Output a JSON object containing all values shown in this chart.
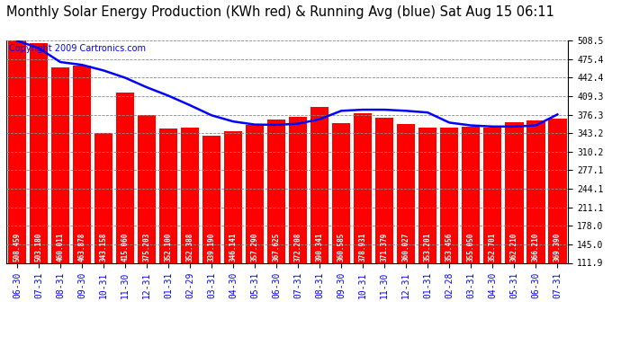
{
  "title": "Monthly Solar Energy Production (KWh red) & Running Avg (blue) Sat Aug 15 06:11",
  "copyright": "Copyright 2009 Cartronics.com",
  "categories": [
    "06-30",
    "07-31",
    "08-31",
    "09-30",
    "10-31",
    "11-30",
    "12-31",
    "01-31",
    "02-29",
    "03-31",
    "04-30",
    "05-31",
    "06-30",
    "07-31",
    "08-31",
    "09-30",
    "10-31",
    "11-30",
    "12-31",
    "01-31",
    "02-28",
    "03-31",
    "04-30",
    "05-31",
    "06-30",
    "07-31"
  ],
  "bar_values": [
    508.459,
    503.18,
    460.011,
    463.878,
    343.158,
    415.06,
    375.203,
    352.1,
    352.388,
    339.19,
    346.141,
    357.29,
    367.625,
    372.208,
    390.341,
    360.585,
    378.931,
    371.379,
    360.027,
    353.201,
    353.456,
    355.05,
    352.701,
    362.21,
    366.21,
    369.39
  ],
  "running_avg": [
    508.0,
    495.0,
    470.0,
    465.0,
    455.0,
    442.0,
    425.0,
    410.0,
    393.0,
    375.0,
    364.0,
    358.5,
    358.0,
    360.0,
    368.0,
    383.0,
    385.0,
    385.0,
    383.0,
    380.0,
    362.0,
    357.0,
    355.0,
    355.0,
    357.0,
    376.5
  ],
  "bar_color": "#FF0000",
  "line_color": "#0000FF",
  "bg_color": "#FFFFFF",
  "plot_bg_color": "#FFFFFF",
  "grid_color": "#888888",
  "title_color": "#000000",
  "ylim": [
    111.9,
    508.5
  ],
  "yticks": [
    111.9,
    145.0,
    178.0,
    211.1,
    244.1,
    277.1,
    310.2,
    343.2,
    376.3,
    409.3,
    442.4,
    475.4,
    508.5
  ],
  "title_fontsize": 10.5,
  "copyright_fontsize": 7,
  "tick_fontsize": 7,
  "bar_label_fontsize": 5.5
}
